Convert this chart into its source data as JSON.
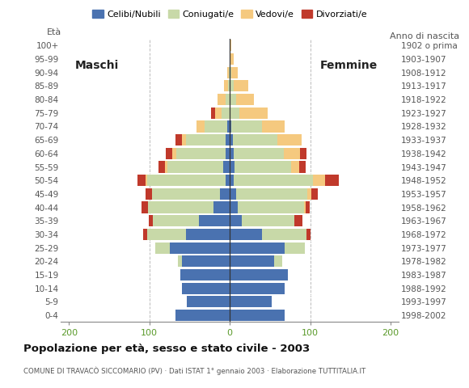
{
  "age_groups": [
    "0-4",
    "5-9",
    "10-14",
    "15-19",
    "20-24",
    "25-29",
    "30-34",
    "35-39",
    "40-44",
    "45-49",
    "50-54",
    "55-59",
    "60-64",
    "65-69",
    "70-74",
    "75-79",
    "80-84",
    "85-89",
    "90-94",
    "95-99",
    "100+"
  ],
  "birth_years": [
    "1998-2002",
    "1993-1997",
    "1988-1992",
    "1983-1987",
    "1978-1982",
    "1973-1977",
    "1968-1972",
    "1963-1967",
    "1958-1962",
    "1953-1957",
    "1948-1952",
    "1943-1947",
    "1938-1942",
    "1933-1937",
    "1928-1932",
    "1923-1927",
    "1918-1922",
    "1913-1917",
    "1908-1912",
    "1903-1907",
    "1902 o prima"
  ],
  "colors": {
    "celibi": "#4a72b0",
    "coniugati": "#c8d9a8",
    "vedovi": "#f5c97f",
    "divorziati": "#c0392b"
  },
  "males": {
    "celibi": [
      68,
      54,
      60,
      62,
      60,
      75,
      55,
      38,
      20,
      12,
      5,
      8,
      5,
      5,
      3,
      0,
      0,
      0,
      0,
      0,
      0
    ],
    "coniugati": [
      0,
      0,
      0,
      0,
      5,
      18,
      48,
      58,
      82,
      85,
      98,
      70,
      62,
      50,
      28,
      10,
      5,
      2,
      1,
      0,
      0
    ],
    "vedovi": [
      0,
      0,
      0,
      0,
      0,
      0,
      0,
      0,
      0,
      0,
      2,
      3,
      5,
      5,
      10,
      8,
      10,
      5,
      2,
      0,
      0
    ],
    "divorziati": [
      0,
      0,
      0,
      0,
      0,
      0,
      5,
      5,
      8,
      8,
      10,
      8,
      8,
      8,
      0,
      5,
      0,
      0,
      0,
      0,
      0
    ]
  },
  "females": {
    "celibi": [
      68,
      52,
      68,
      72,
      55,
      68,
      40,
      15,
      10,
      8,
      5,
      6,
      5,
      4,
      2,
      0,
      0,
      0,
      0,
      0,
      0
    ],
    "coniugati": [
      0,
      0,
      0,
      0,
      10,
      25,
      55,
      65,
      82,
      88,
      98,
      70,
      62,
      55,
      38,
      12,
      8,
      5,
      2,
      0,
      0
    ],
    "vedovi": [
      0,
      0,
      0,
      0,
      0,
      0,
      0,
      0,
      2,
      5,
      15,
      10,
      20,
      30,
      28,
      35,
      22,
      18,
      8,
      5,
      2
    ],
    "divorziati": [
      0,
      0,
      0,
      0,
      0,
      0,
      5,
      10,
      5,
      8,
      18,
      8,
      8,
      0,
      0,
      0,
      0,
      0,
      0,
      0,
      0
    ]
  },
  "xlim": 210,
  "title": "Popolazione per età, sesso e stato civile - 2003",
  "subtitle": "COMUNE DI TRAVACÒ SICCOMARIO (PV) · Dati ISTAT 1° gennaio 2003 · Elaborazione TUTTITALIA.IT",
  "ylabel_left": "Età",
  "ylabel_right": "Anno di nascita",
  "label_maschi": "Maschi",
  "label_femmine": "Femmine",
  "legend_labels": [
    "Celibi/Nubili",
    "Coniugati/e",
    "Vedovi/e",
    "Divorziati/e"
  ],
  "background_color": "#ffffff",
  "grid_color": "#bbbbbb",
  "tick_color": "#5a9a2a"
}
